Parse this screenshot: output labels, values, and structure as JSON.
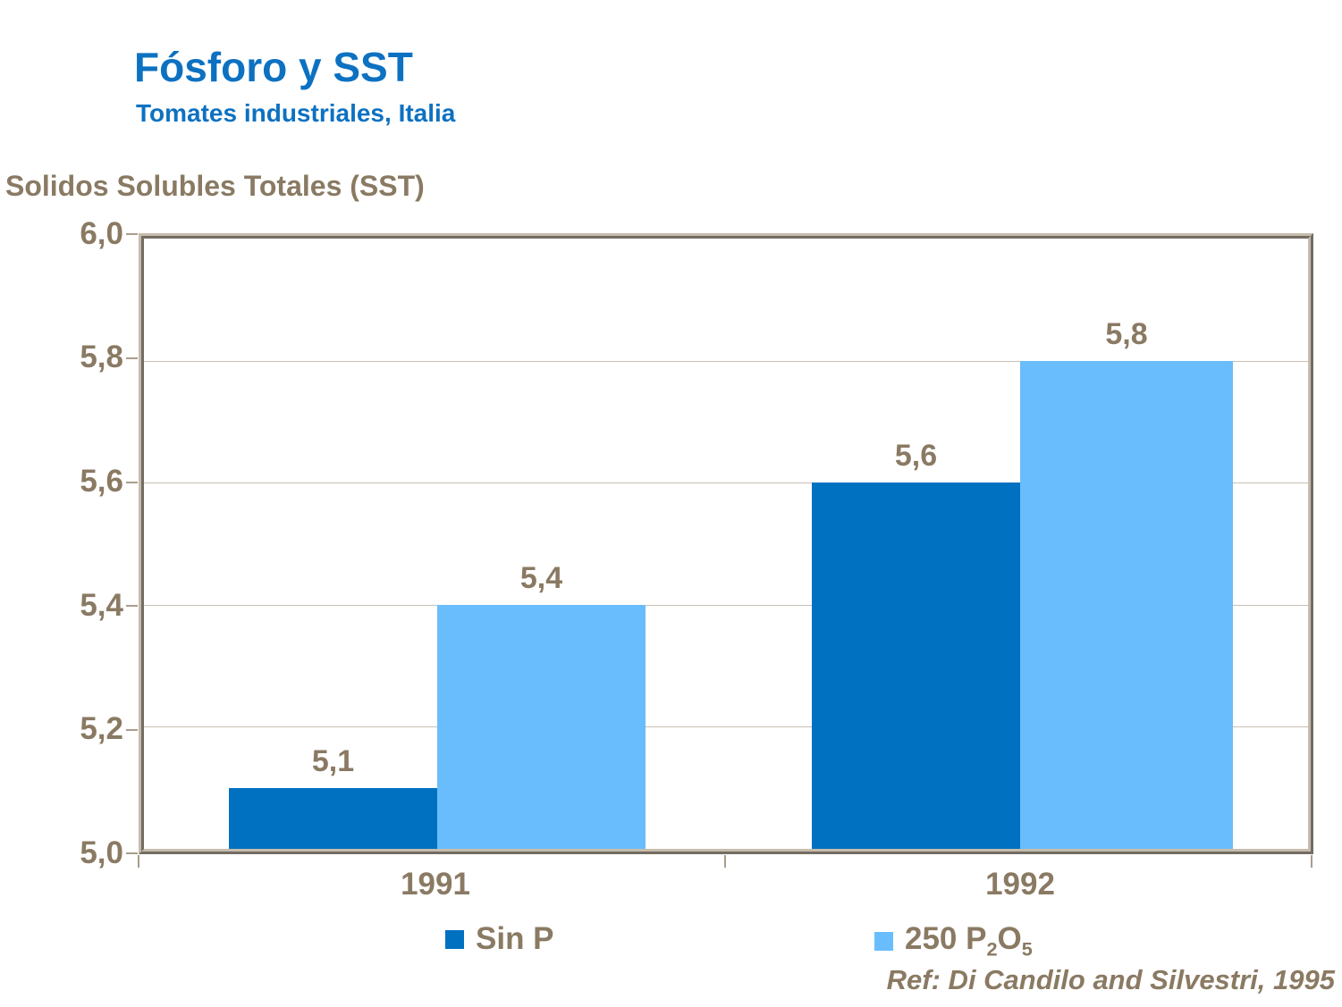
{
  "header": {
    "title": "Fósforo y SST",
    "subtitle": "Tomates industriales, Italia"
  },
  "legend": {
    "sin_p_label": "Sin P",
    "p2o5_parts": [
      {
        "t": "250 P"
      },
      {
        "t": "2",
        "sub": true
      },
      {
        "t": "O"
      },
      {
        "t": "5",
        "sub": true
      }
    ]
  },
  "chart_data": {
    "type": "bar",
    "title": "Fósforo y SST",
    "subtitle": "Tomates industriales, Italia",
    "ylabel": "Solidos Solubles Totales (SST)",
    "categories": [
      "1991",
      "1992"
    ],
    "series": [
      {
        "name": "Sin P",
        "color": "#0071c1",
        "values": [
          5.1,
          5.6
        ],
        "labels": [
          "5,1",
          "5,6"
        ]
      },
      {
        "name": "250 P₂O₅",
        "color": "#6abdfc",
        "values": [
          5.4,
          5.8
        ],
        "labels": [
          "5,4",
          "5,8"
        ]
      }
    ],
    "ylim": [
      5.0,
      6.0
    ],
    "ytick_step": 0.2,
    "yticks": [
      "6,0",
      "5,8",
      "5,6",
      "5,4",
      "5,2",
      "5,0"
    ],
    "decimal_separator": ",",
    "grid": true,
    "legend_position": "bottom",
    "reference": "Ref: Di Candilo and Silvestri, 1995"
  },
  "colors": {
    "title_blue": "#0d71c1",
    "text_brown": "#8a7a63",
    "series_dark_blue": "#0071c1",
    "series_light_blue": "#6abdfc",
    "plot_border_tan": "#b4aa9a",
    "gridline_tan": "#c9c0b2"
  }
}
